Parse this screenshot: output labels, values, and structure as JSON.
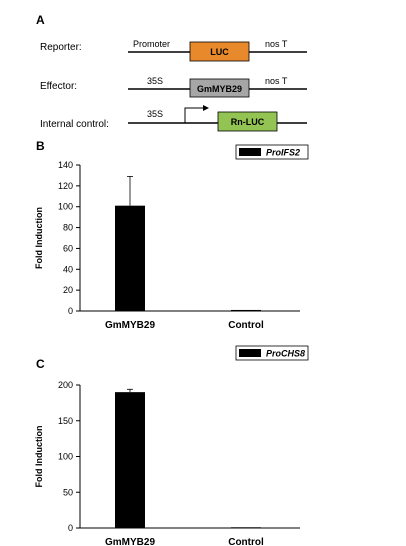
{
  "panel_a": {
    "letter": "A",
    "reporter": {
      "label": "Reporter:",
      "promoter_label": "Promoter",
      "box_label": "LUC",
      "terminator_label": "nos T",
      "box_color": "#e8892b"
    },
    "effector": {
      "label": "Effector:",
      "promoter_label": "35S",
      "box_label": "GmMYB29",
      "terminator_label": "nos T",
      "box_color": "#a6a6a6"
    },
    "internal_control": {
      "label": "Internal control:",
      "promoter_label": "35S",
      "box_label": "Rn-LUC",
      "box_color": "#92c353"
    }
  },
  "chart_data": [
    {
      "panel_letter": "B",
      "type": "bar",
      "categories": [
        "GmMYB29",
        "Control"
      ],
      "series": [
        {
          "name": "ProIFS2",
          "values": [
            101,
            1
          ],
          "errors": [
            28,
            0
          ],
          "color": "#000000"
        }
      ],
      "ylabel": "Fold Induction",
      "ylim": [
        0,
        140
      ],
      "yticks": [
        "0",
        "20",
        "40",
        "60",
        "80",
        "100",
        "120",
        "140"
      ],
      "legend_position": "top-right",
      "grid": false
    },
    {
      "panel_letter": "C",
      "type": "bar",
      "categories": [
        "GmMYB29",
        "Control"
      ],
      "series": [
        {
          "name": "ProCHS8",
          "values": [
            190,
            1
          ],
          "errors": [
            4,
            0
          ],
          "color": "#000000"
        }
      ],
      "ylabel": "Fold Induction",
      "ylim": [
        0,
        200
      ],
      "yticks": [
        "0",
        "50",
        "100",
        "150",
        "200"
      ],
      "legend_position": "top-right",
      "grid": false
    }
  ]
}
